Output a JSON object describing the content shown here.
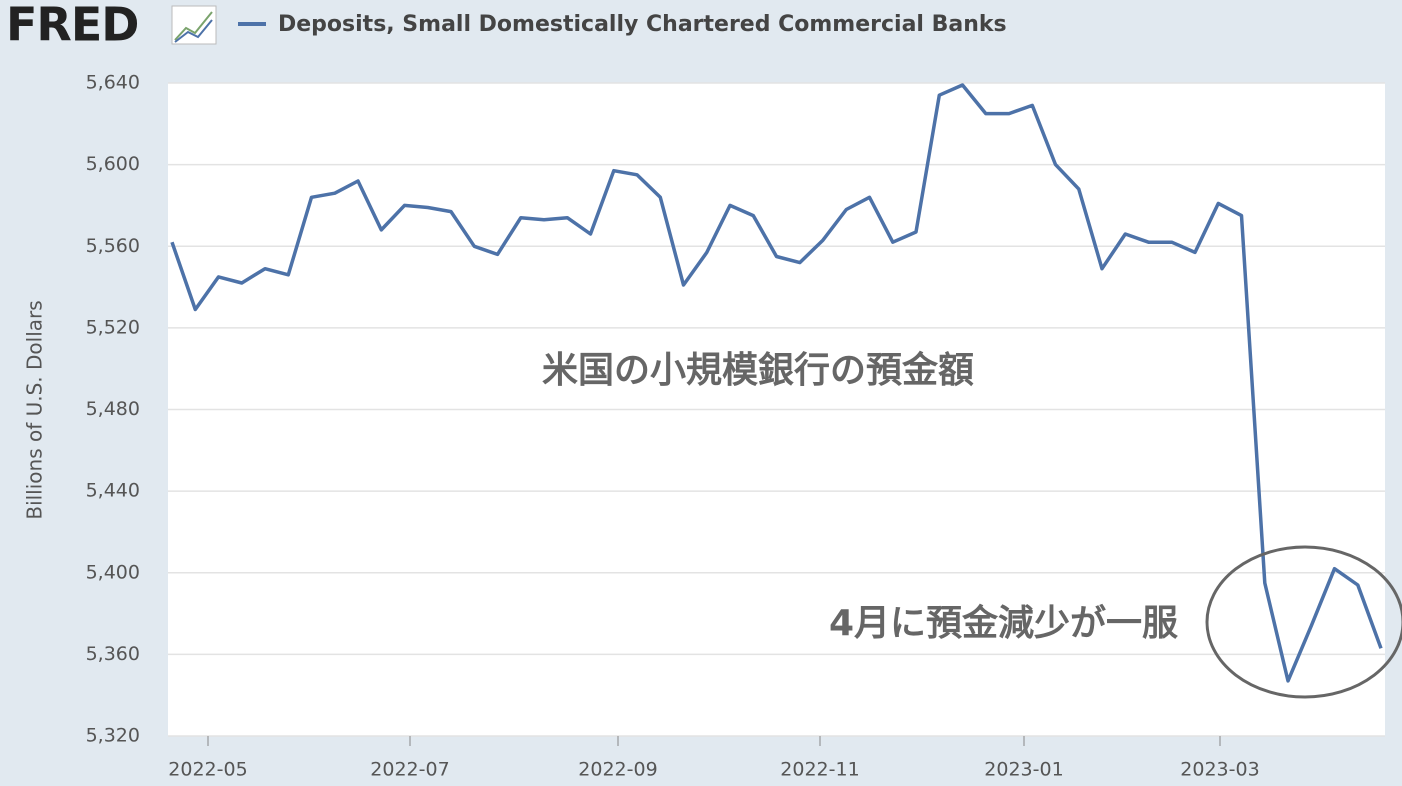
{
  "logo": "FRED",
  "chart_data": {
    "type": "line",
    "annotations": [
      "米国の小規模銀行の預金額",
      "4月に預金減少が一服"
    ],
    "y_label": "Billions of U.S. Dollars",
    "xticks": [
      "2022-05",
      "2022-07",
      "2022-09",
      "2022-11",
      "2023-01",
      "2023-03"
    ],
    "ylim": [
      5320,
      5640
    ],
    "yticks": [
      {
        "value": 5320,
        "label": "5,320"
      },
      {
        "value": 5360,
        "label": "5,360"
      },
      {
        "value": 5400,
        "label": "5,400"
      },
      {
        "value": 5440,
        "label": "5,440"
      },
      {
        "value": 5480,
        "label": "5,480"
      },
      {
        "value": 5520,
        "label": "5,520"
      },
      {
        "value": 5560,
        "label": "5,560"
      },
      {
        "value": 5600,
        "label": "5,600"
      },
      {
        "value": 5640,
        "label": "5,640"
      }
    ],
    "grid": true,
    "series": [
      {
        "name": "Deposits, Small Domestically Chartered Commercial Banks",
        "color": "#4d72a8",
        "values": [
          5562,
          5529,
          5545,
          5542,
          5549,
          5546,
          5584,
          5586,
          5592,
          5568,
          5580,
          5579,
          5577,
          5560,
          5556,
          5574,
          5573,
          5574,
          5566,
          5597,
          5595,
          5584,
          5541,
          5557,
          5580,
          5575,
          5555,
          5552,
          5563,
          5578,
          5584,
          5562,
          5567,
          5634,
          5639,
          5625,
          5625,
          5629,
          5600,
          5588,
          5549,
          5566,
          5562,
          5562,
          5557,
          5581,
          5575,
          5395,
          5347,
          5374,
          5402,
          5394,
          5363
        ]
      }
    ]
  }
}
